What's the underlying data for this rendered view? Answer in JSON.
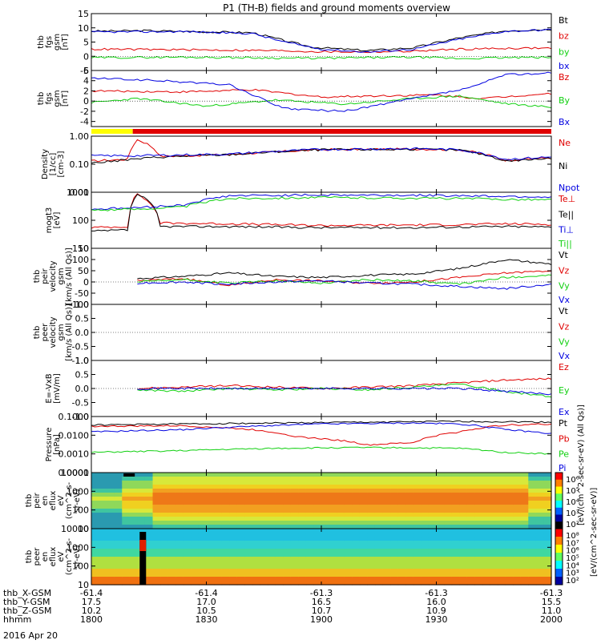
{
  "title": "P1 (TH-B) fields and ground moments overview",
  "date_label": "2016 Apr 20",
  "colors": {
    "black": "#000000",
    "red": "#e00000",
    "green": "#10d010",
    "blue": "#0000e0",
    "yellow": "#ffff00",
    "bar_red": "#e00000"
  },
  "chart_data": [
    {
      "type": "line",
      "id": "bfield_gse",
      "ylabel": [
        "thb",
        "fgs",
        "gsm",
        "[nT]"
      ],
      "ylim": [
        -5,
        15
      ],
      "yticks": [
        "15",
        "10",
        "5",
        "0",
        "-5"
      ],
      "legend": [
        {
          "text": "Bt",
          "color": "#000000"
        },
        {
          "text": "bz",
          "color": "#e00000"
        },
        {
          "text": "by",
          "color": "#10d010"
        },
        {
          "text": "bx",
          "color": "#0000e0"
        }
      ],
      "series": [
        {
          "name": "Bt",
          "color": "#000000",
          "x": [
            0,
            0.12,
            0.35,
            0.42,
            0.48,
            0.6,
            0.7,
            0.8,
            0.9,
            1.0
          ],
          "y": [
            8.8,
            9.0,
            8.3,
            5.5,
            3.2,
            2.0,
            3.0,
            6.5,
            9.0,
            9.5
          ]
        },
        {
          "name": "bz",
          "color": "#e00000",
          "x": [
            0,
            0.2,
            0.4,
            0.5,
            0.6,
            0.7,
            0.8,
            0.9,
            1.0
          ],
          "y": [
            2.5,
            2.3,
            2.0,
            1.6,
            1.5,
            1.8,
            2.5,
            2.8,
            2.9
          ]
        },
        {
          "name": "by",
          "color": "#10d010",
          "x": [
            0,
            0.2,
            0.4,
            0.5,
            0.6,
            0.7,
            0.8,
            0.9,
            1.0
          ],
          "y": [
            -0.5,
            -0.3,
            -0.6,
            -0.7,
            -0.5,
            -0.3,
            -0.8,
            -0.5,
            -0.4
          ]
        },
        {
          "name": "bx",
          "color": "#0000e0",
          "x": [
            0,
            0.2,
            0.35,
            0.42,
            0.5,
            0.6,
            0.7,
            0.8,
            0.9,
            1.0
          ],
          "y": [
            8.5,
            8.7,
            8.0,
            5.0,
            2.5,
            1.5,
            2.5,
            6.0,
            8.8,
            9.3
          ]
        }
      ]
    },
    {
      "type": "line",
      "id": "bfield_gsm",
      "ylabel": [
        "thb",
        "fgs",
        "gsm",
        "[nT]"
      ],
      "ylim": [
        -5,
        6
      ],
      "yticks": [
        "6",
        "4",
        "2",
        "0",
        "-2",
        "-4"
      ],
      "legend": [
        {
          "text": "Bz",
          "color": "#e00000"
        },
        {
          "text": "By",
          "color": "#10d010"
        },
        {
          "text": "Bx",
          "color": "#0000e0"
        }
      ],
      "series": [
        {
          "name": "Bz",
          "color": "#e00000",
          "x": [
            0,
            0.2,
            0.35,
            0.5,
            0.6,
            0.75,
            0.85,
            0.95,
            1.0
          ],
          "y": [
            2.0,
            1.8,
            2.2,
            0.8,
            1.0,
            1.2,
            0.5,
            1.2,
            1.5
          ]
        },
        {
          "name": "By",
          "color": "#10d010",
          "x": [
            0,
            0.1,
            0.25,
            0.4,
            0.55,
            0.7,
            0.8,
            0.9,
            1.0
          ],
          "y": [
            -0.3,
            0.5,
            -1.0,
            0.2,
            -0.6,
            0.5,
            1.0,
            -0.5,
            -1.2
          ]
        },
        {
          "name": "Bx",
          "color": "#0000e0",
          "x": [
            0,
            0.15,
            0.3,
            0.42,
            0.55,
            0.7,
            0.82,
            0.9,
            1.0
          ],
          "y": [
            4.5,
            4.0,
            3.2,
            -1.5,
            -2.0,
            0.5,
            2.5,
            5.2,
            5.5
          ]
        }
      ]
    },
    {
      "type": "line",
      "id": "density",
      "yscale": "log",
      "ylabel": [
        "Density",
        "[1/cc]",
        "[cm-3]"
      ],
      "ylim": [
        0.01,
        1.0
      ],
      "yticks": [
        "1.00",
        "0.10",
        "0.01"
      ],
      "legend": [
        {
          "text": "Ne",
          "color": "#e00000"
        },
        {
          "text": "Ni",
          "color": "#000000"
        },
        {
          "text": "Npot",
          "color": "#0000e0"
        }
      ],
      "series": [
        {
          "name": "Ne",
          "color": "#e00000",
          "x": [
            0,
            0.08,
            0.1,
            0.12,
            0.15,
            0.3,
            0.5,
            0.7,
            0.8,
            0.9,
            1.0
          ],
          "y": [
            0.13,
            0.15,
            0.75,
            0.55,
            0.19,
            0.22,
            0.33,
            0.35,
            0.33,
            0.14,
            0.17
          ]
        },
        {
          "name": "Ni",
          "color": "#000000",
          "x": [
            0,
            0.05,
            0.15,
            0.3,
            0.5,
            0.7,
            0.8,
            0.9,
            1.0
          ],
          "y": [
            0.11,
            0.13,
            0.18,
            0.22,
            0.33,
            0.34,
            0.32,
            0.13,
            0.16
          ]
        },
        {
          "name": "Npot",
          "color": "#0000e0",
          "x": [
            0,
            0.1,
            0.3,
            0.5,
            0.7,
            0.8,
            0.9,
            1.0
          ],
          "y": [
            0.2,
            0.2,
            0.23,
            0.34,
            0.36,
            0.33,
            0.15,
            0.18
          ]
        }
      ]
    },
    {
      "type": "line",
      "id": "temperature",
      "yscale": "log",
      "ylabel": [
        "mogt3",
        "[eV]"
      ],
      "ylim": [
        10,
        1000
      ],
      "yticks": [
        "1000",
        "100",
        "10"
      ],
      "legend": [
        {
          "text": "Te⊥",
          "color": "#e00000"
        },
        {
          "text": "Te||",
          "color": "#000000"
        },
        {
          "text": "Ti⊥",
          "color": "#0000e0"
        },
        {
          "text": "Ti||",
          "color": "#10d010"
        }
      ],
      "series": [
        {
          "name": "Te⊥",
          "color": "#e00000",
          "x": [
            0,
            0.08,
            0.1,
            0.12,
            0.15,
            0.3,
            0.5,
            0.7,
            0.8,
            0.9,
            1.0
          ],
          "y": [
            55,
            60,
            900,
            500,
            80,
            75,
            65,
            68,
            70,
            75,
            72
          ]
        },
        {
          "name": "Te||",
          "color": "#000000",
          "x": [
            0,
            0.08,
            0.1,
            0.15,
            0.3,
            0.5,
            0.7,
            0.8,
            0.9,
            1.0
          ],
          "y": [
            40,
            45,
            850,
            60,
            60,
            55,
            55,
            58,
            60,
            58
          ]
        },
        {
          "name": "Ti⊥",
          "color": "#0000e0",
          "x": [
            0,
            0.1,
            0.2,
            0.3,
            0.5,
            0.7,
            0.8,
            0.9,
            1.0
          ],
          "y": [
            250,
            280,
            350,
            750,
            800,
            780,
            760,
            720,
            680
          ]
        },
        {
          "name": "Ti||",
          "color": "#10d010",
          "x": [
            0,
            0.1,
            0.2,
            0.3,
            0.5,
            0.7,
            0.8,
            0.9,
            1.0
          ],
          "y": [
            230,
            250,
            300,
            600,
            650,
            620,
            600,
            560,
            540
          ]
        }
      ]
    },
    {
      "type": "line",
      "id": "ion_velocity",
      "ylabel": [
        "thb",
        "peir",
        "velocity",
        "gsm",
        "[km/s (All Qs)]"
      ],
      "ylim": [
        -100,
        150
      ],
      "yticks": [
        "150",
        "100",
        "50",
        "0",
        "-50",
        "-100"
      ],
      "legend": [
        {
          "text": "Vt",
          "color": "#000000"
        },
        {
          "text": "Vz",
          "color": "#e00000"
        },
        {
          "text": "Vy",
          "color": "#10d010"
        },
        {
          "text": "Vx",
          "color": "#0000e0"
        }
      ],
      "series": [
        {
          "name": "Vt",
          "color": "#000000",
          "x": [
            0.1,
            0.2,
            0.3,
            0.4,
            0.5,
            0.6,
            0.7,
            0.8,
            0.9,
            1.0
          ],
          "y": [
            15,
            25,
            40,
            25,
            20,
            30,
            35,
            60,
            100,
            80
          ]
        },
        {
          "name": "Vz",
          "color": "#e00000",
          "x": [
            0.1,
            0.2,
            0.3,
            0.4,
            0.5,
            0.6,
            0.7,
            0.8,
            0.9,
            1.0
          ],
          "y": [
            5,
            15,
            -15,
            10,
            5,
            -5,
            0,
            20,
            40,
            50
          ]
        },
        {
          "name": "Vy",
          "color": "#10d010",
          "x": [
            0.1,
            0.2,
            0.3,
            0.4,
            0.5,
            0.6,
            0.7,
            0.8,
            0.9,
            1.0
          ],
          "y": [
            0,
            10,
            -5,
            5,
            -5,
            10,
            5,
            -10,
            20,
            30
          ]
        },
        {
          "name": "Vx",
          "color": "#0000e0",
          "x": [
            0.1,
            0.2,
            0.3,
            0.4,
            0.5,
            0.6,
            0.7,
            0.8,
            0.9,
            1.0
          ],
          "y": [
            -5,
            0,
            -10,
            0,
            5,
            -5,
            -10,
            -20,
            -30,
            -10
          ]
        }
      ]
    },
    {
      "type": "line",
      "id": "electron_velocity",
      "ylabel": [
        "thb",
        "peer",
        "velocity",
        "gsm",
        "[km/s (All Qs)]"
      ],
      "ylim": [
        -1.0,
        1.0
      ],
      "yticks": [
        "1.0",
        "0.5",
        "0.0",
        "-0.5",
        "-1.0"
      ],
      "legend": [
        {
          "text": "Vt",
          "color": "#000000"
        },
        {
          "text": "Vz",
          "color": "#e00000"
        },
        {
          "text": "Vy",
          "color": "#10d010"
        },
        {
          "text": "Vx",
          "color": "#0000e0"
        }
      ],
      "series": []
    },
    {
      "type": "line",
      "id": "efield",
      "ylabel": [
        "E=-VxB",
        "[mV/m]"
      ],
      "ylim": [
        -1.0,
        1.0
      ],
      "yticks": [
        "1.0",
        "0.5",
        "0.0",
        "-0.5",
        "-1.0"
      ],
      "legend": [
        {
          "text": "Ez",
          "color": "#e00000"
        },
        {
          "text": "Ey",
          "color": "#10d010"
        },
        {
          "text": "Ex",
          "color": "#0000e0"
        }
      ],
      "series": [
        {
          "name": "Ez",
          "color": "#e00000",
          "x": [
            0.1,
            0.2,
            0.3,
            0.4,
            0.5,
            0.6,
            0.7,
            0.8,
            0.9,
            1.0
          ],
          "y": [
            0.0,
            0.05,
            0.1,
            0.05,
            0.0,
            0.05,
            0.1,
            0.2,
            0.3,
            0.35
          ]
        },
        {
          "name": "Ey",
          "color": "#10d010",
          "x": [
            0.1,
            0.2,
            0.3,
            0.4,
            0.5,
            0.6,
            0.7,
            0.8,
            0.9,
            1.0
          ],
          "y": [
            -0.05,
            -0.1,
            0.0,
            -0.05,
            0.0,
            -0.05,
            0.05,
            0.15,
            -0.1,
            -0.3
          ]
        },
        {
          "name": "Ex",
          "color": "#0000e0",
          "x": [
            0.1,
            0.2,
            0.3,
            0.4,
            0.5,
            0.6,
            0.7,
            0.8,
            0.9,
            1.0
          ],
          "y": [
            0.0,
            0.0,
            0.0,
            0.0,
            0.0,
            0.0,
            0.0,
            0.0,
            -0.1,
            -0.2
          ]
        }
      ]
    },
    {
      "type": "line",
      "id": "pressure",
      "yscale": "log",
      "ylabel": [
        "Pressure",
        "[nPa]"
      ],
      "ylim": [
        0.0001,
        0.1
      ],
      "yticks": [
        "0.1000",
        "0.0100",
        "0.0010",
        "0.0001"
      ],
      "legend": [
        {
          "text": "Pt",
          "color": "#000000"
        },
        {
          "text": "Pb",
          "color": "#e00000"
        },
        {
          "text": "Pe",
          "color": "#10d010"
        },
        {
          "text": "Pi",
          "color": "#0000e0"
        }
      ],
      "series": [
        {
          "name": "Pt",
          "color": "#000000",
          "x": [
            0,
            0.2,
            0.4,
            0.6,
            0.8,
            1.0
          ],
          "y": [
            0.035,
            0.04,
            0.045,
            0.05,
            0.055,
            0.05
          ]
        },
        {
          "name": "Pb",
          "color": "#e00000",
          "x": [
            0,
            0.2,
            0.35,
            0.45,
            0.55,
            0.6,
            0.7,
            0.8,
            0.9,
            1.0
          ],
          "y": [
            0.03,
            0.032,
            0.02,
            0.008,
            0.005,
            0.003,
            0.004,
            0.015,
            0.035,
            0.04
          ]
        },
        {
          "name": "Pe",
          "color": "#10d010",
          "x": [
            0,
            0.2,
            0.4,
            0.6,
            0.8,
            0.9,
            1.0
          ],
          "y": [
            0.0012,
            0.0015,
            0.002,
            0.0022,
            0.002,
            0.0012,
            0.001
          ]
        },
        {
          "name": "Pi",
          "color": "#0000e0",
          "x": [
            0,
            0.2,
            0.35,
            0.5,
            0.7,
            0.8,
            0.9,
            1.0
          ],
          "y": [
            0.015,
            0.02,
            0.03,
            0.04,
            0.045,
            0.04,
            0.02,
            0.012
          ]
        }
      ]
    },
    {
      "type": "heatmap",
      "id": "ion_spectrogram",
      "yscale": "log",
      "ylabel": [
        "thb",
        "peir",
        "en",
        "eflux",
        "eV",
        "(cm^2-s-",
        "sr-eV)"
      ],
      "ylim": [
        10,
        10000
      ],
      "yticks": [
        "10000",
        "1000",
        "100",
        "10"
      ],
      "colorbar": {
        "ticks": [
          "10⁶",
          "10⁵",
          "10⁴",
          "10³",
          "10²"
        ],
        "label": "[eV/(cm^2-sec-sr-eV)]",
        "label2": "[eV/(cm^2-sec-sr-eV) (All Qs)]"
      }
    },
    {
      "type": "heatmap",
      "id": "electron_spectrogram",
      "yscale": "log",
      "ylabel": [
        "thb",
        "peer",
        "en",
        "eflux",
        "eV",
        "(cm^2-s-",
        "sr-eV)"
      ],
      "ylim": [
        10,
        10000
      ],
      "yticks": [
        "10000",
        "1000",
        "100",
        "10"
      ],
      "colorbar": {
        "ticks": [
          "10⁸",
          "10⁷",
          "10⁶",
          "10⁵",
          "10⁴",
          "10³",
          "10²"
        ]
      }
    }
  ],
  "xaxis": {
    "row_labels": [
      "thb_X-GSM",
      "thb_Y-GSM",
      "thb_Z-GSM",
      "hhmm"
    ],
    "columns": [
      [
        "-61.4",
        "17.5",
        "10.2",
        "1800"
      ],
      [
        "-61.4",
        "17.0",
        "10.5",
        "1830"
      ],
      [
        "-61.3",
        "16.5",
        "10.7",
        "1900"
      ],
      [
        "-61.3",
        "16.0",
        "10.9",
        "1930"
      ],
      [
        "-61.3",
        "15.5",
        "11.0",
        "2000"
      ]
    ]
  },
  "mode_bar": {
    "segments": [
      {
        "color": "#ffff00",
        "start": 0.0,
        "end": 0.09
      },
      {
        "color": "#e00000",
        "start": 0.09,
        "end": 1.0
      }
    ]
  }
}
